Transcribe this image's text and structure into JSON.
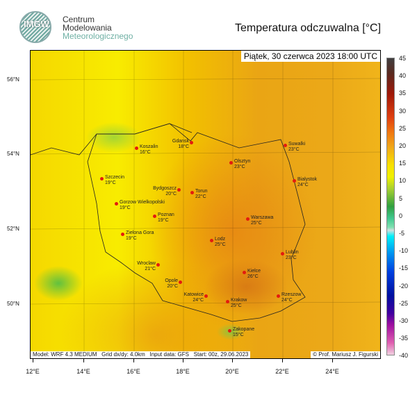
{
  "header": {
    "org_line1": "Centrum",
    "org_line2": "Modelowania",
    "org_line3": "Meteorologicznego",
    "logo_text": "IMGW",
    "title": "Temperatura odczuwalna [°C]"
  },
  "map": {
    "datetime": "Piątek, 30 czerwca 2023 18:00 UTC",
    "footer_model": "Model: WRF 4.3 MEDIUM   Grid dx/dy: 4.0km   Input data: GFS   Start: 00z, 29.06.2023",
    "footer_copyright": "© Prof. Mariusz J. Figurski",
    "lat_labels": [
      "56°N",
      "54°N",
      "52°N",
      "50°N"
    ],
    "lon_labels": [
      "12°E",
      "14°E",
      "16°E",
      "18°E",
      "20°E",
      "22°E",
      "24°E"
    ],
    "cities": [
      {
        "name": "Koszalin",
        "temp": "16°C"
      },
      {
        "name": "Gdansk",
        "temp": "18°C"
      },
      {
        "name": "Szczecin",
        "temp": "19°C"
      },
      {
        "name": "Gorzow Wielkopolski",
        "temp": "19°C"
      },
      {
        "name": "Poznan",
        "temp": "19°C"
      },
      {
        "name": "Zielona Gora",
        "temp": "19°C"
      },
      {
        "name": "Bydgoszcz",
        "temp": "20°C"
      },
      {
        "name": "Torun",
        "temp": "22°C"
      },
      {
        "name": "Olsztyn",
        "temp": "23°C"
      },
      {
        "name": "Suwalki",
        "temp": "23°C"
      },
      {
        "name": "Bialystok",
        "temp": "24°C"
      },
      {
        "name": "Warszawa",
        "temp": "25°C"
      },
      {
        "name": "Lodz",
        "temp": "25°C"
      },
      {
        "name": "Lublin",
        "temp": "23°C"
      },
      {
        "name": "Wroclaw",
        "temp": "21°C"
      },
      {
        "name": "Opole",
        "temp": "20°C"
      },
      {
        "name": "Katowice",
        "temp": "24°C"
      },
      {
        "name": "Krakow",
        "temp": "25°C"
      },
      {
        "name": "Kielce",
        "temp": "26°C"
      },
      {
        "name": "Rzeszow",
        "temp": "24°C"
      },
      {
        "name": "Zakopane",
        "temp": "15°C"
      }
    ]
  },
  "colorbar": {
    "unit": "°C",
    "labels": [
      "45",
      "40",
      "35",
      "30",
      "25",
      "20",
      "15",
      "10",
      "5",
      "0",
      "-5",
      "-10",
      "-15",
      "-20",
      "-25",
      "-30",
      "-35",
      "-40"
    ],
    "city_marker_color": "#e31b0f"
  }
}
